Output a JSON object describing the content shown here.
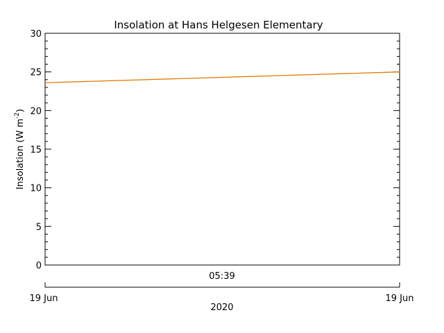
{
  "chart_data": {
    "type": "line",
    "title": "Insolation at Hans Helgesen Elementary",
    "ylabel": "Insolation (W m",
    "ylabel_sup": "-2",
    "ylabel_close": ")",
    "ylim": [
      0,
      30
    ],
    "y_ticks": [
      0,
      5,
      10,
      15,
      20,
      25,
      30
    ],
    "y_tick_labels": [
      "0",
      "5",
      "10",
      "15",
      "20",
      "25",
      "30"
    ],
    "x_time_label": "05:39",
    "x_date_start": "19 Jun",
    "x_date_end": "19 Jun",
    "x_year": "2020",
    "grid": false,
    "series": [
      {
        "color": "#e07b00",
        "x": [
          0,
          1
        ],
        "values": [
          23.6,
          25.0
        ]
      }
    ]
  }
}
